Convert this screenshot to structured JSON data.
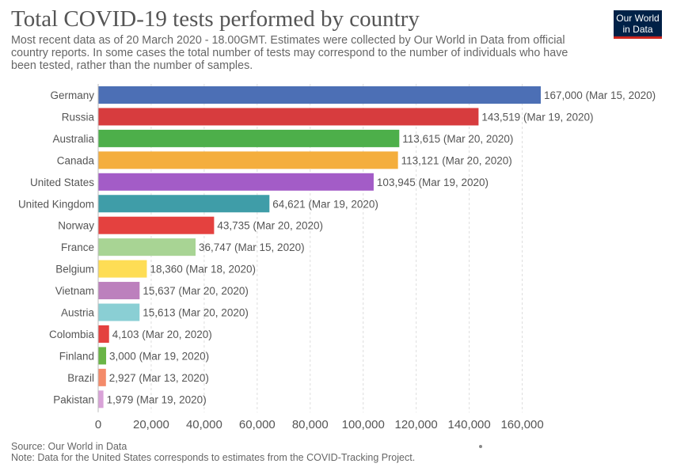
{
  "header": {
    "title": "Total COVID-19 tests performed by country",
    "subtitle": "Most recent data as of 20 March 2020 - 18.00GMT. Estimates were collected by Our World in Data from official country reports. In some cases the total number of tests may correspond to the number of individuals who have been tested, rather than the number of samples."
  },
  "logo": {
    "line1": "Our World",
    "line2": "in Data"
  },
  "footer": {
    "source": "Source: Our World in Data",
    "note": "Note: Data for the United States corresponds to estimates from the COVID-Tracking Project."
  },
  "chart_data": {
    "type": "bar",
    "orientation": "horizontal",
    "title": "Total COVID-19 tests performed by country",
    "xlabel": "",
    "ylabel": "",
    "xlim": [
      0,
      167000
    ],
    "xticks": [
      0,
      20000,
      40000,
      60000,
      80000,
      100000,
      120000,
      140000,
      160000
    ],
    "xtick_labels": [
      "0",
      "20,000",
      "40,000",
      "60,000",
      "80,000",
      "100,000",
      "120,000",
      "140,000",
      "160,000"
    ],
    "grid": "vertical-dashed",
    "categories": [
      "Germany",
      "Russia",
      "Australia",
      "Canada",
      "United States",
      "United Kingdom",
      "Norway",
      "France",
      "Belgium",
      "Vietnam",
      "Austria",
      "Colombia",
      "Finland",
      "Brazil",
      "Pakistan"
    ],
    "values": [
      167000,
      143519,
      113615,
      113121,
      103945,
      64621,
      43735,
      36747,
      18360,
      15637,
      15613,
      4103,
      3000,
      2927,
      1979
    ],
    "value_labels": [
      "167,000 (Mar 15, 2020)",
      "143,519 (Mar 19, 2020)",
      "113,615 (Mar 20, 2020)",
      "113,121 (Mar 20, 2020)",
      "103,945 (Mar 19, 2020)",
      "64,621 (Mar 19, 2020)",
      "43,735 (Mar 20, 2020)",
      "36,747 (Mar 15, 2020)",
      "18,360 (Mar 18, 2020)",
      "15,637 (Mar 20, 2020)",
      "15,613 (Mar 20, 2020)",
      "4,103 (Mar 20, 2020)",
      "3,000 (Mar 19, 2020)",
      "2,927 (Mar 13, 2020)",
      "1,979 (Mar 19, 2020)"
    ],
    "colors": [
      "#4c6fb5",
      "#d73c3e",
      "#4daf4a",
      "#f4ae3d",
      "#a35cc7",
      "#3f9da8",
      "#e4413f",
      "#a8d494",
      "#fedd55",
      "#bc80bd",
      "#8acfd4",
      "#e4413f",
      "#6ab546",
      "#f48b6a",
      "#d9a2d8"
    ]
  }
}
